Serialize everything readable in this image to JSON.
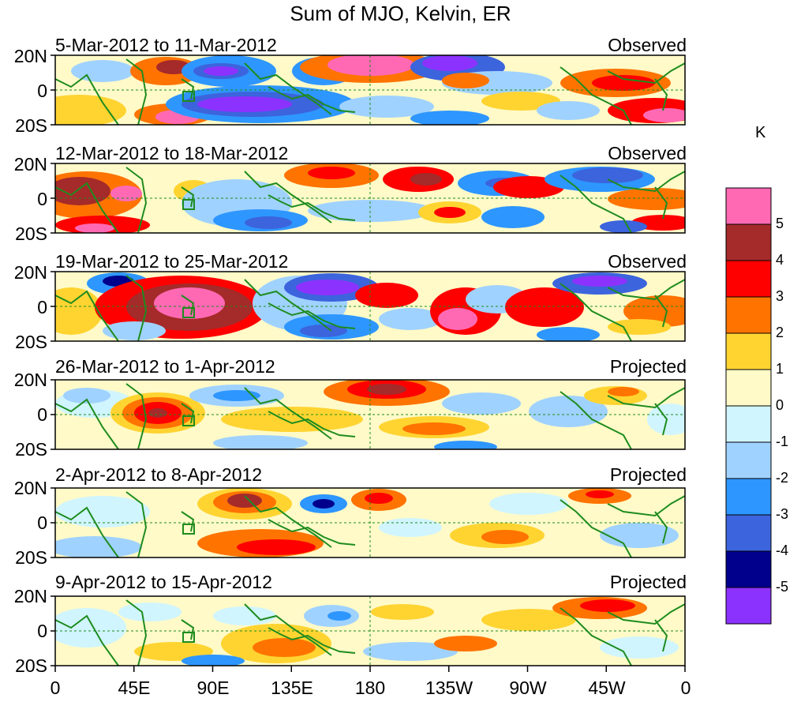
{
  "title": "Sum of MJO, Kelvin, ER",
  "colorbar": {
    "unit": "K",
    "levels": [
      {
        "label": "5",
        "color": "#ff69b4"
      },
      {
        "label": "4",
        "color": "#a52a2a"
      },
      {
        "label": "3",
        "color": "#ff0000"
      },
      {
        "label": "2",
        "color": "#ff7300"
      },
      {
        "label": "1",
        "color": "#ffd431"
      },
      {
        "label": "0",
        "color": "#fffac8"
      },
      {
        "label": "-1",
        "color": "#d0f5ff"
      },
      {
        "label": "-2",
        "color": "#a0d2ff"
      },
      {
        "label": "-3",
        "color": "#2e96ff"
      },
      {
        "label": "-4",
        "color": "#3c64dc"
      },
      {
        "label": "-5",
        "color": "#00008c"
      },
      {
        "label": "",
        "color": "#8c32ff"
      }
    ]
  },
  "axes": {
    "y_labels": [
      "20N",
      "0",
      "20S"
    ],
    "x_labels": [
      "0",
      "45E",
      "90E",
      "135E",
      "180",
      "135W",
      "90W",
      "45W",
      "0"
    ]
  },
  "panels": [
    {
      "dates": "5-Mar-2012 to 11-Mar-2012",
      "status": "Observed"
    },
    {
      "dates": "12-Mar-2012 to 18-Mar-2012",
      "status": "Observed"
    },
    {
      "dates": "19-Mar-2012 to 25-Mar-2012",
      "status": "Observed"
    },
    {
      "dates": "26-Mar-2012 to 1-Apr-2012",
      "status": "Projected"
    },
    {
      "dates": "2-Apr-2012 to 8-Apr-2012",
      "status": "Projected"
    },
    {
      "dates": "9-Apr-2012 to 15-Apr-2012",
      "status": "Projected"
    }
  ]
}
